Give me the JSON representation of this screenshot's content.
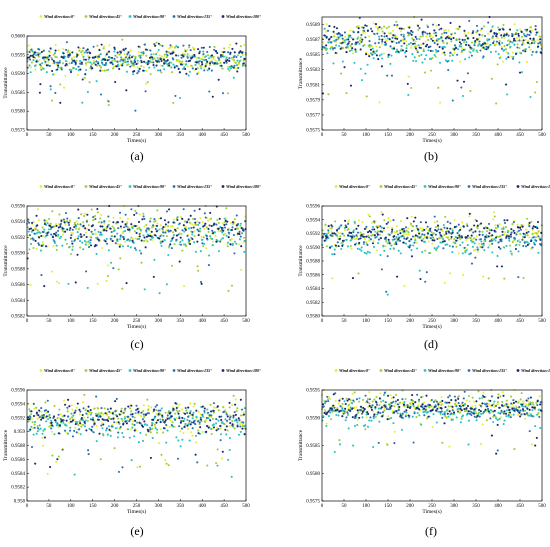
{
  "figure": {
    "colors": {
      "Wind direction:0°": "#e9ee32",
      "Wind direction:45°": "#9ccf3d",
      "Wind direction:90°": "#27c3c7",
      "Wind direction:135°": "#2f6fb0",
      "Wind direction:180°": "#1b2a6b"
    },
    "legend_labels": [
      "Wind direction:0°",
      "Wind direction:45°",
      "Wind direction:90°",
      "Wind direction:135°",
      "Wind direction:180°"
    ]
  },
  "chart_data": [
    {
      "panel": "(a)",
      "caption": "(a)",
      "type": "scatter",
      "xlabel": "Times(s)",
      "ylabel": "Transmittance",
      "xlim": [
        0,
        500
      ],
      "ylim": [
        0.9575,
        0.96
      ],
      "xticks": [
        0,
        50,
        100,
        150,
        200,
        250,
        300,
        350,
        400,
        450,
        500
      ],
      "yticks": [
        0.9575,
        0.958,
        0.9585,
        0.959,
        0.9595,
        0.96
      ],
      "ytick_labels": [
        "0.9575",
        "0.9580",
        "0.9585",
        "0.9590",
        "0.9595",
        "0.9600"
      ],
      "grid": false,
      "legend_position": "top",
      "series": [
        {
          "name": "Wind direction:0°",
          "x_range": [
            0,
            500
          ],
          "y_approx_center": 0.9594,
          "y_approx_spread": 0.0003
        },
        {
          "name": "Wind direction:45°",
          "x_range": [
            0,
            500
          ],
          "y_approx_center": 0.9594,
          "y_approx_spread": 0.0003
        },
        {
          "name": "Wind direction:90°",
          "x_range": [
            0,
            500
          ],
          "y_approx_center": 0.9593,
          "y_approx_spread": 0.0003
        },
        {
          "name": "Wind direction:135°",
          "x_range": [
            0,
            500
          ],
          "y_approx_center": 0.9594,
          "y_approx_spread": 0.0003
        },
        {
          "name": "Wind direction:180°",
          "x_range": [
            0,
            500
          ],
          "y_approx_center": 0.9594,
          "y_approx_spread": 0.0003
        }
      ]
    },
    {
      "panel": "(b)",
      "caption": "(b)",
      "type": "scatter",
      "xlabel": "Times(s)",
      "ylabel": "Transmittance",
      "xlim": [
        0,
        500
      ],
      "ylim": [
        0.9575,
        0.959
      ],
      "xticks": [
        0,
        50,
        100,
        150,
        200,
        250,
        300,
        350,
        400,
        450,
        500
      ],
      "yticks": [
        0.9575,
        0.9577,
        0.9579,
        0.9581,
        0.9583,
        0.9585,
        0.9587,
        0.9589
      ],
      "ytick_labels": [
        "0.9575",
        "0.9577",
        "0.9579",
        "0.9581",
        "0.9583",
        "0.9585",
        "0.9587",
        "0.9589"
      ],
      "grid": false,
      "legend_position": "top",
      "series": [
        {
          "name": "Wind direction:0°",
          "x_range": [
            0,
            500
          ],
          "y_approx_center": 0.9587,
          "y_approx_spread": 0.0002
        },
        {
          "name": "Wind direction:45°",
          "x_range": [
            0,
            500
          ],
          "y_approx_center": 0.9587,
          "y_approx_spread": 0.0002
        },
        {
          "name": "Wind direction:90°",
          "x_range": [
            0,
            500
          ],
          "y_approx_center": 0.9586,
          "y_approx_spread": 0.0002
        },
        {
          "name": "Wind direction:135°",
          "x_range": [
            0,
            500
          ],
          "y_approx_center": 0.9587,
          "y_approx_spread": 0.0002
        },
        {
          "name": "Wind direction:180°",
          "x_range": [
            0,
            500
          ],
          "y_approx_center": 0.9587,
          "y_approx_spread": 0.0002
        }
      ]
    },
    {
      "panel": "(c)",
      "caption": "(c)",
      "type": "scatter",
      "xlabel": "Times(s)",
      "ylabel": "Transmittance",
      "xlim": [
        0,
        500
      ],
      "ylim": [
        0.9582,
        0.9596
      ],
      "xticks": [
        0,
        50,
        100,
        150,
        200,
        250,
        300,
        350,
        400,
        450,
        500
      ],
      "yticks": [
        0.9582,
        0.9584,
        0.9586,
        0.9588,
        0.959,
        0.9592,
        0.9594,
        0.9596
      ],
      "ytick_labels": [
        "0.9582",
        "0.9584",
        "0.9586",
        "0.9588",
        "0.9590",
        "0.9592",
        "0.9594",
        "0.9596"
      ],
      "grid": false,
      "legend_position": "top",
      "series": [
        {
          "name": "Wind direction:0°",
          "x_range": [
            0,
            500
          ],
          "y_approx_center": 0.9593,
          "y_approx_spread": 0.0002
        },
        {
          "name": "Wind direction:45°",
          "x_range": [
            0,
            500
          ],
          "y_approx_center": 0.9593,
          "y_approx_spread": 0.0002
        },
        {
          "name": "Wind direction:90°",
          "x_range": [
            0,
            500
          ],
          "y_approx_center": 0.9592,
          "y_approx_spread": 0.0002
        },
        {
          "name": "Wind direction:135°",
          "x_range": [
            0,
            500
          ],
          "y_approx_center": 0.9593,
          "y_approx_spread": 0.0002
        },
        {
          "name": "Wind direction:180°",
          "x_range": [
            0,
            500
          ],
          "y_approx_center": 0.9593,
          "y_approx_spread": 0.0002
        }
      ]
    },
    {
      "panel": "(d)",
      "caption": "(d)",
      "type": "scatter",
      "xlabel": "Times(s)",
      "ylabel": "Transmittance",
      "xlim": [
        0,
        500
      ],
      "ylim": [
        0.958,
        0.9596
      ],
      "xticks": [
        0,
        50,
        100,
        150,
        200,
        250,
        300,
        350,
        400,
        450,
        500
      ],
      "yticks": [
        0.958,
        0.9582,
        0.9584,
        0.9586,
        0.9588,
        0.959,
        0.9592,
        0.9594,
        0.9596
      ],
      "ytick_labels": [
        "0.9580",
        "0.9582",
        "0.9584",
        "0.9586",
        "0.9588",
        "0.9590",
        "0.9592",
        "0.9594",
        "0.9596"
      ],
      "grid": false,
      "legend_position": "top",
      "series": [
        {
          "name": "Wind direction:0°",
          "x_range": [
            0,
            500
          ],
          "y_approx_center": 0.9592,
          "y_approx_spread": 0.0002
        },
        {
          "name": "Wind direction:45°",
          "x_range": [
            0,
            500
          ],
          "y_approx_center": 0.9592,
          "y_approx_spread": 0.0002
        },
        {
          "name": "Wind direction:90°",
          "x_range": [
            0,
            500
          ],
          "y_approx_center": 0.9591,
          "y_approx_spread": 0.0002
        },
        {
          "name": "Wind direction:135°",
          "x_range": [
            0,
            500
          ],
          "y_approx_center": 0.9592,
          "y_approx_spread": 0.0002
        },
        {
          "name": "Wind direction:180°",
          "x_range": [
            0,
            500
          ],
          "y_approx_center": 0.9592,
          "y_approx_spread": 0.0002
        }
      ]
    },
    {
      "panel": "(e)",
      "caption": "(e)",
      "type": "scatter",
      "xlabel": "Times(s)",
      "ylabel": "Transmittance",
      "xlim": [
        0,
        500
      ],
      "ylim": [
        0.958,
        0.9596
      ],
      "xticks": [
        0,
        50,
        100,
        150,
        200,
        250,
        300,
        350,
        400,
        450,
        500
      ],
      "yticks": [
        0.958,
        0.9582,
        0.9584,
        0.9586,
        0.9588,
        0.959,
        0.9592,
        0.9594,
        0.9596
      ],
      "ytick_labels": [
        "0.958",
        "0.9582",
        "0.9584",
        "0.9586",
        "0.9588",
        "0.959",
        "0.9592",
        "0.9594",
        "0.9596"
      ],
      "grid": false,
      "legend_position": "top",
      "series": [
        {
          "name": "Wind direction:0°",
          "x_range": [
            0,
            500
          ],
          "y_approx_center": 0.9592,
          "y_approx_spread": 0.0002
        },
        {
          "name": "Wind direction:45°",
          "x_range": [
            0,
            500
          ],
          "y_approx_center": 0.9592,
          "y_approx_spread": 0.0002
        },
        {
          "name": "Wind direction:90°",
          "x_range": [
            0,
            500
          ],
          "y_approx_center": 0.9591,
          "y_approx_spread": 0.0002
        },
        {
          "name": "Wind direction:135°",
          "x_range": [
            0,
            500
          ],
          "y_approx_center": 0.9592,
          "y_approx_spread": 0.0002
        },
        {
          "name": "Wind direction:180°",
          "x_range": [
            0,
            500
          ],
          "y_approx_center": 0.9592,
          "y_approx_spread": 0.0002
        }
      ]
    },
    {
      "panel": "(f)",
      "caption": "(f)",
      "type": "scatter",
      "xlabel": "Times(s)",
      "ylabel": "Transmittance",
      "xlim": [
        0,
        500
      ],
      "ylim": [
        0.9575,
        0.9595
      ],
      "xticks": [
        0,
        50,
        100,
        150,
        200,
        250,
        300,
        350,
        400,
        450,
        500
      ],
      "yticks": [
        0.9575,
        0.958,
        0.9585,
        0.959,
        0.9595
      ],
      "ytick_labels": [
        "0.9575",
        "0.9580",
        "0.9585",
        "0.9590",
        "0.9595"
      ],
      "grid": false,
      "legend_position": "top",
      "series": [
        {
          "name": "Wind direction:0°",
          "x_range": [
            0,
            500
          ],
          "y_approx_center": 0.9592,
          "y_approx_spread": 0.0002
        },
        {
          "name": "Wind direction:45°",
          "x_range": [
            0,
            500
          ],
          "y_approx_center": 0.9592,
          "y_approx_spread": 0.0002
        },
        {
          "name": "Wind direction:90°",
          "x_range": [
            0,
            500
          ],
          "y_approx_center": 0.9591,
          "y_approx_spread": 0.0002
        },
        {
          "name": "Wind direction:135°",
          "x_range": [
            0,
            500
          ],
          "y_approx_center": 0.9592,
          "y_approx_spread": 0.0002
        },
        {
          "name": "Wind direction:180°",
          "x_range": [
            0,
            500
          ],
          "y_approx_center": 0.9592,
          "y_approx_spread": 0.0002
        }
      ]
    }
  ]
}
